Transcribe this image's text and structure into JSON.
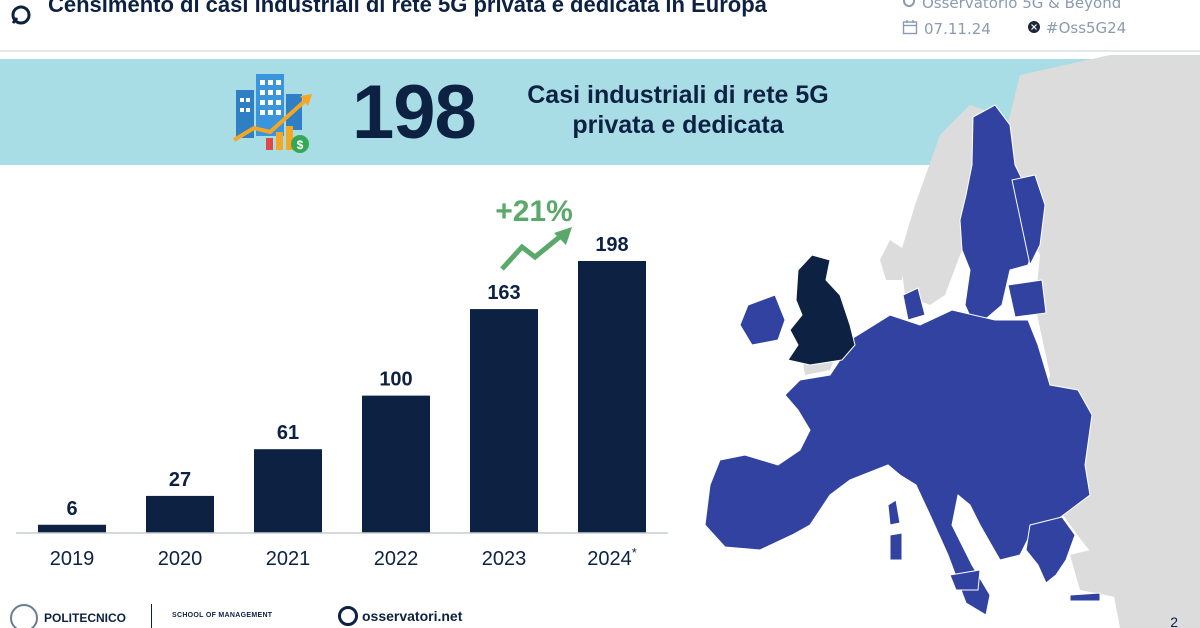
{
  "header": {
    "title": "Censimento di casi industriali di rete 5G privata e dedicata in Europa",
    "source": "Osservatorio 5G & Beyond",
    "date": "07.11.24",
    "hashtag": "#Oss5G24"
  },
  "banner": {
    "number": "198",
    "text_line1": "Casi industriali di rete 5G",
    "text_line2": "privata e dedicata"
  },
  "chart_data": {
    "type": "bar",
    "categories": [
      "2019",
      "2020",
      "2021",
      "2022",
      "2023",
      "2024*"
    ],
    "values": [
      6,
      27,
      61,
      100,
      163,
      198
    ],
    "title": "",
    "xlabel": "",
    "ylabel": "",
    "ylim": [
      0,
      198
    ],
    "grid": false,
    "bar_color": "#0d2142",
    "annotation": {
      "text": "+21%",
      "color": "#5aa86a"
    }
  },
  "colors": {
    "navy": "#0d2142",
    "banner_bg": "#a9dde6",
    "map_eu": "#3142a0",
    "map_other": "#dcdcdc",
    "map_uk": "#0d2142",
    "growth_green": "#5aa86a"
  },
  "footer": {
    "politecnico": "POLITECNICO",
    "school": "SCHOOL OF MANAGEMENT",
    "osservatori": "osservatori.net",
    "page_number": "2"
  }
}
